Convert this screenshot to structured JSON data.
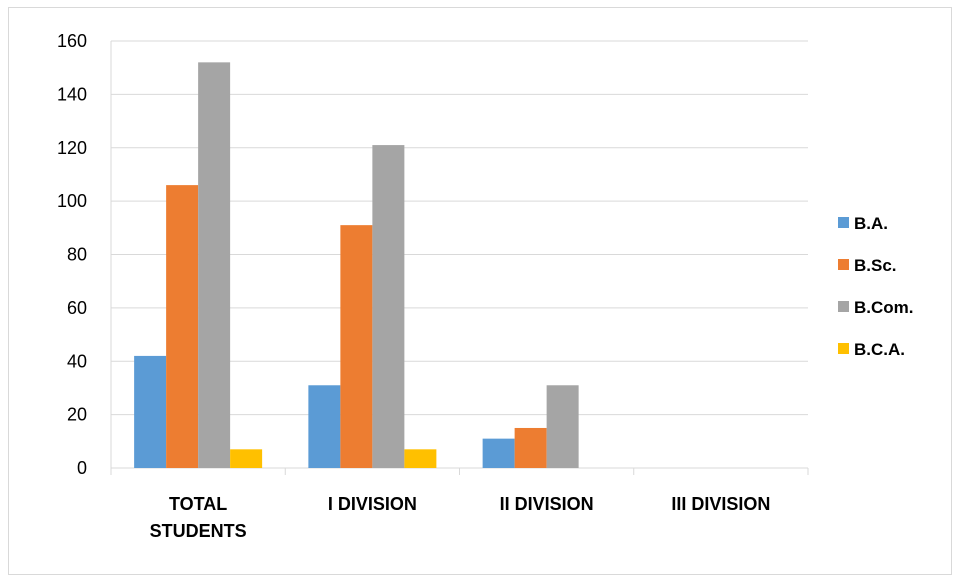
{
  "chart_data": {
    "type": "bar",
    "title": "",
    "xlabel": "",
    "ylabel": "",
    "ylim": [
      0,
      160
    ],
    "yticks": [
      0,
      20,
      40,
      60,
      80,
      100,
      120,
      140,
      160
    ],
    "grid": true,
    "legend_position": "right",
    "categories": [
      [
        "TOTAL",
        "STUDENTS"
      ],
      [
        "I DIVISION"
      ],
      [
        "II DIVISION"
      ],
      [
        "III DIVISION"
      ]
    ],
    "series": [
      {
        "name": "B.A.",
        "color": "#5b9bd5",
        "values": [
          42,
          31,
          11,
          0
        ]
      },
      {
        "name": "B.Sc.",
        "color": "#ed7d31",
        "values": [
          106,
          91,
          15,
          0
        ]
      },
      {
        "name": "B.Com.",
        "color": "#a5a5a5",
        "values": [
          152,
          121,
          31,
          0
        ]
      },
      {
        "name": "B.C.A.",
        "color": "#ffc000",
        "values": [
          7,
          7,
          0,
          0
        ]
      }
    ]
  }
}
